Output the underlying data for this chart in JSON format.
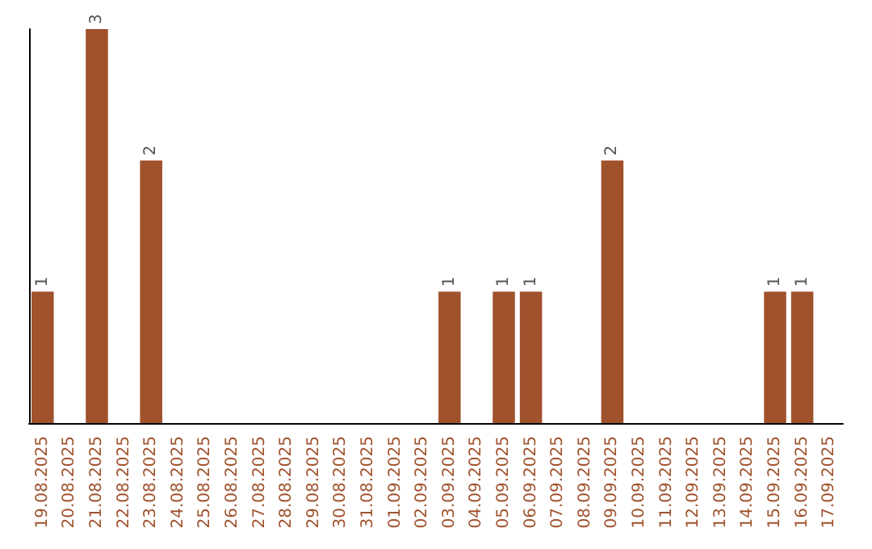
{
  "chart_data": {
    "type": "bar",
    "categories": [
      "19.08.2025",
      "20.08.2025",
      "21.08.2025",
      "22.08.2025",
      "23.08.2025",
      "24.08.2025",
      "25.08.2025",
      "26.08.2025",
      "27.08.2025",
      "28.08.2025",
      "29.08.2025",
      "30.08.2025",
      "31.08.2025",
      "01.09.2025",
      "02.09.2025",
      "03.09.2025",
      "04.09.2025",
      "05.09.2025",
      "06.09.2025",
      "07.09.2025",
      "08.09.2025",
      "09.09.2025",
      "10.09.2025",
      "11.09.2025",
      "12.09.2025",
      "13.09.2025",
      "14.09.2025",
      "15.09.2025",
      "16.09.2025",
      "17.09.2025"
    ],
    "values": [
      1,
      0,
      3,
      0,
      2,
      0,
      0,
      0,
      0,
      0,
      0,
      0,
      0,
      0,
      0,
      1,
      0,
      1,
      1,
      0,
      0,
      2,
      0,
      0,
      0,
      0,
      0,
      1,
      1,
      0
    ],
    "value_labels": [
      "1",
      null,
      "3",
      null,
      "2",
      null,
      null,
      null,
      null,
      null,
      null,
      null,
      null,
      null,
      null,
      "1",
      null,
      "1",
      "1",
      null,
      null,
      "2",
      null,
      null,
      null,
      null,
      null,
      "1",
      "1",
      null
    ],
    "color": "#a0522d",
    "tick_labels": "x",
    "grid": false
  }
}
